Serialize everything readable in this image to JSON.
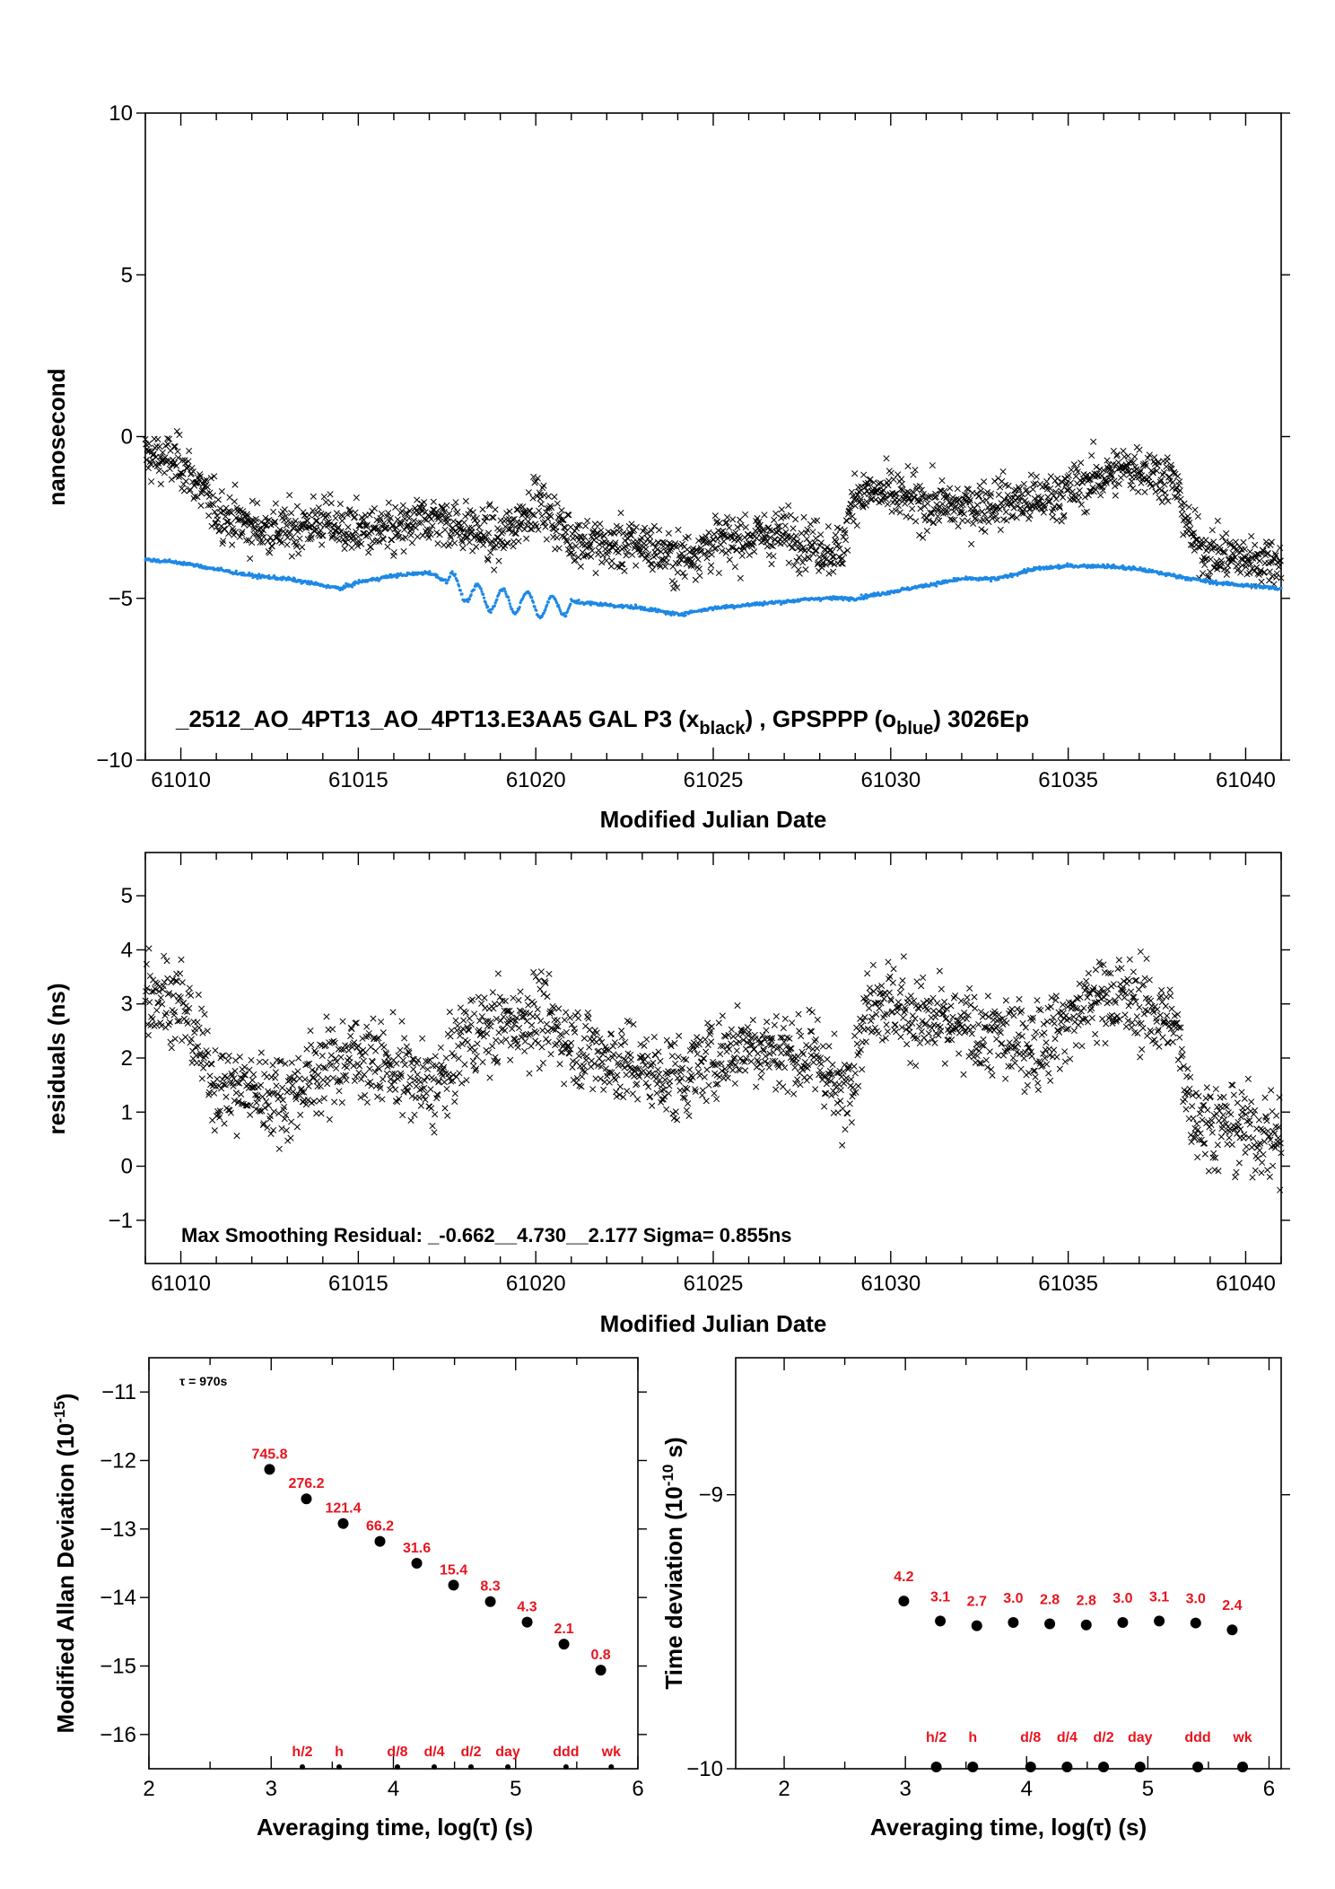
{
  "chart_data": [
    {
      "id": "p1",
      "type": "scatter",
      "title": "_2512_AO_4PT13_AO_4PT13.E3AA5    GAL P3 (x",
      "title_sub1": "black",
      "title_mid": ") ,  GPSPPP (o",
      "title_sub2": "blue",
      "title_end": ")  3026Ep",
      "xlabel": "Modified Julian Date",
      "ylabel": "nanosecond",
      "xlim": [
        61009.0,
        61041.0
      ],
      "ylim": [
        -10,
        10
      ],
      "xticks": [
        61010,
        61015,
        61020,
        61025,
        61030,
        61035,
        61040
      ],
      "yticks": [
        10,
        5,
        0,
        -5,
        -10
      ],
      "ytick_labels": [
        "10",
        "5",
        "0",
        "−5",
        "−10"
      ],
      "series": [
        {
          "marker": "x",
          "color": "#000000",
          "x": [
            61009.0,
            61010.0,
            61011.0,
            61012.0,
            61013.0,
            61014.0,
            61014.5,
            61015.0,
            61016.0,
            61017.0,
            61018.0,
            61019.0,
            61020.0,
            61021.0,
            61022.0,
            61023.0,
            61024.0,
            61025.0,
            61026.0,
            61027.0,
            61028.0,
            61028.6,
            61029.0,
            61030.0,
            61031.0,
            61032.0,
            61033.0,
            61034.0,
            61035.0,
            61036.0,
            61037.0,
            61038.0,
            61038.5,
            61039.0,
            61040.0,
            61041.0
          ],
          "y": [
            -0.6,
            -0.8,
            -2.3,
            -2.8,
            -2.9,
            -2.6,
            -2.8,
            -2.9,
            -3.0,
            -2.5,
            -2.8,
            -3.2,
            -2.0,
            -3.1,
            -3.4,
            -3.3,
            -3.8,
            -3.3,
            -3.1,
            -3.0,
            -3.4,
            -3.6,
            -1.7,
            -1.8,
            -2.1,
            -2.2,
            -2.0,
            -2.0,
            -1.7,
            -1.2,
            -0.9,
            -1.4,
            -3.2,
            -3.6,
            -3.8,
            -3.8
          ]
        },
        {
          "marker": "o",
          "color": "#1e88e5",
          "x": [
            61009.0,
            61010.0,
            61011.0,
            61012.0,
            61013.0,
            61014.0,
            61014.5,
            61015.0,
            61016.0,
            61017.0,
            61017.7,
            61018.5,
            61019.5,
            61020.5,
            61021.0,
            61022.0,
            61023.0,
            61024.0,
            61025.0,
            61026.0,
            61027.0,
            61028.0,
            61029.0,
            61030.0,
            61031.0,
            61032.0,
            61033.0,
            61034.0,
            61035.0,
            61036.0,
            61037.0,
            61038.0,
            61039.0,
            61040.0,
            61041.0
          ],
          "y": [
            -3.8,
            -3.9,
            -4.1,
            -4.3,
            -4.4,
            -4.6,
            -4.7,
            -4.5,
            -4.3,
            -4.2,
            -4.6,
            -5.0,
            -5.1,
            -5.3,
            -5.1,
            -5.2,
            -5.3,
            -5.5,
            -5.3,
            -5.2,
            -5.1,
            -5.0,
            -5.0,
            -4.8,
            -4.6,
            -4.4,
            -4.4,
            -4.1,
            -4.0,
            -4.0,
            -4.1,
            -4.3,
            -4.5,
            -4.6,
            -4.7
          ]
        }
      ]
    },
    {
      "id": "p2",
      "type": "scatter",
      "annotation": "Max Smoothing Residual: _-0.662__4.730__2.177  Sigma= 0.855ns",
      "xlabel": "Modified Julian Date",
      "ylabel": "residuals (ns)",
      "xlim": [
        61009.0,
        61041.0
      ],
      "ylim": [
        -1.8,
        5.8
      ],
      "xticks": [
        61010,
        61015,
        61020,
        61025,
        61030,
        61035,
        61040
      ],
      "yticks": [
        5,
        4,
        3,
        2,
        1,
        0,
        -1
      ],
      "ytick_labels": [
        "5",
        "4",
        "3",
        "2",
        "1",
        "0",
        "−1"
      ],
      "series": [
        {
          "marker": "x",
          "color": "#000000",
          "x": [
            61009.0,
            61010.0,
            61011.0,
            61012.0,
            61013.0,
            61014.0,
            61015.0,
            61016.0,
            61017.0,
            61017.5,
            61018.0,
            61019.0,
            61020.0,
            61021.0,
            61022.0,
            61023.0,
            61024.0,
            61025.0,
            61026.0,
            61027.0,
            61028.0,
            61028.6,
            61029.5,
            61030.0,
            61031.0,
            61032.0,
            61033.0,
            61034.0,
            61035.0,
            61036.0,
            61037.0,
            61038.0,
            61038.5,
            61039.0,
            61040.0,
            61041.0
          ],
          "y": [
            3.3,
            3.0,
            1.5,
            1.4,
            1.3,
            1.8,
            2.1,
            1.8,
            1.4,
            1.7,
            2.4,
            2.6,
            2.8,
            2.3,
            2.0,
            1.8,
            1.6,
            2.0,
            2.3,
            2.1,
            2.0,
            1.2,
            3.2,
            3.0,
            2.7,
            2.5,
            2.4,
            2.2,
            2.7,
            3.2,
            3.0,
            2.6,
            1.0,
            0.8,
            0.7,
            0.5
          ]
        }
      ]
    },
    {
      "id": "p3",
      "type": "scatter",
      "annotation": "τ = 970s",
      "xlabel": "Averaging time, log(τ) (s)",
      "ylabel": "Modified Allan Deviation (10",
      "ylabel_sup": "-15",
      "ylabel_end": ")",
      "xlim": [
        2,
        6
      ],
      "ylim": [
        -16.5,
        -10.5
      ],
      "xticks": [
        2,
        3,
        4,
        5,
        6
      ],
      "yticks": [
        -11,
        -12,
        -13,
        -14,
        -15,
        -16
      ],
      "ytick_labels": [
        "−11",
        "−12",
        "−13",
        "−14",
        "−15",
        "−16"
      ],
      "points": {
        "x": [
          2.987,
          3.288,
          3.589,
          3.89,
          4.191,
          4.492,
          4.793,
          5.094,
          5.395,
          5.696
        ],
        "y": [
          -12.13,
          -12.56,
          -12.92,
          -13.18,
          -13.5,
          -13.82,
          -14.06,
          -14.36,
          -14.68,
          -15.06
        ],
        "labels": [
          "745.8",
          "276.2",
          "121.4",
          "66.2",
          "31.6",
          "15.4",
          "8.3",
          "4.3",
          "2.1",
          "0.8"
        ]
      },
      "markers": {
        "x": [
          3.255,
          3.556,
          4.033,
          4.334,
          4.635,
          4.936,
          5.412,
          5.782
        ],
        "labels": [
          "h/2",
          "h",
          "d/8",
          "d/4",
          "d/2",
          "day",
          "ddd",
          "wk"
        ]
      }
    },
    {
      "id": "p4",
      "type": "scatter",
      "xlabel": "Averaging time, log(τ) (s)",
      "ylabel": "Time deviation (10",
      "ylabel_sup": "-10",
      "ylabel_end": " s)",
      "xlim": [
        1.6,
        6.1
      ],
      "ylim": [
        -10.0,
        -8.5
      ],
      "xticks": [
        2,
        3,
        4,
        5,
        6
      ],
      "yticks": [
        -9,
        -10
      ],
      "ytick_labels": [
        "−9",
        "−10"
      ],
      "points": {
        "x": [
          2.987,
          3.288,
          3.589,
          3.89,
          4.191,
          4.492,
          4.793,
          5.094,
          5.395,
          5.696
        ],
        "y": [
          -9.388,
          -9.461,
          -9.478,
          -9.466,
          -9.471,
          -9.475,
          -9.466,
          -9.461,
          -9.468,
          -9.493
        ],
        "labels": [
          "4.2",
          "3.1",
          "2.7",
          "3.0",
          "2.8",
          "2.8",
          "3.0",
          "3.1",
          "3.0",
          "2.4"
        ]
      },
      "markers": {
        "x": [
          3.255,
          3.556,
          4.033,
          4.334,
          4.635,
          4.936,
          5.412,
          5.782
        ],
        "labels": [
          "h/2",
          "h",
          "d/8",
          "d/4",
          "d/2",
          "day",
          "ddd",
          "wk"
        ]
      }
    }
  ]
}
